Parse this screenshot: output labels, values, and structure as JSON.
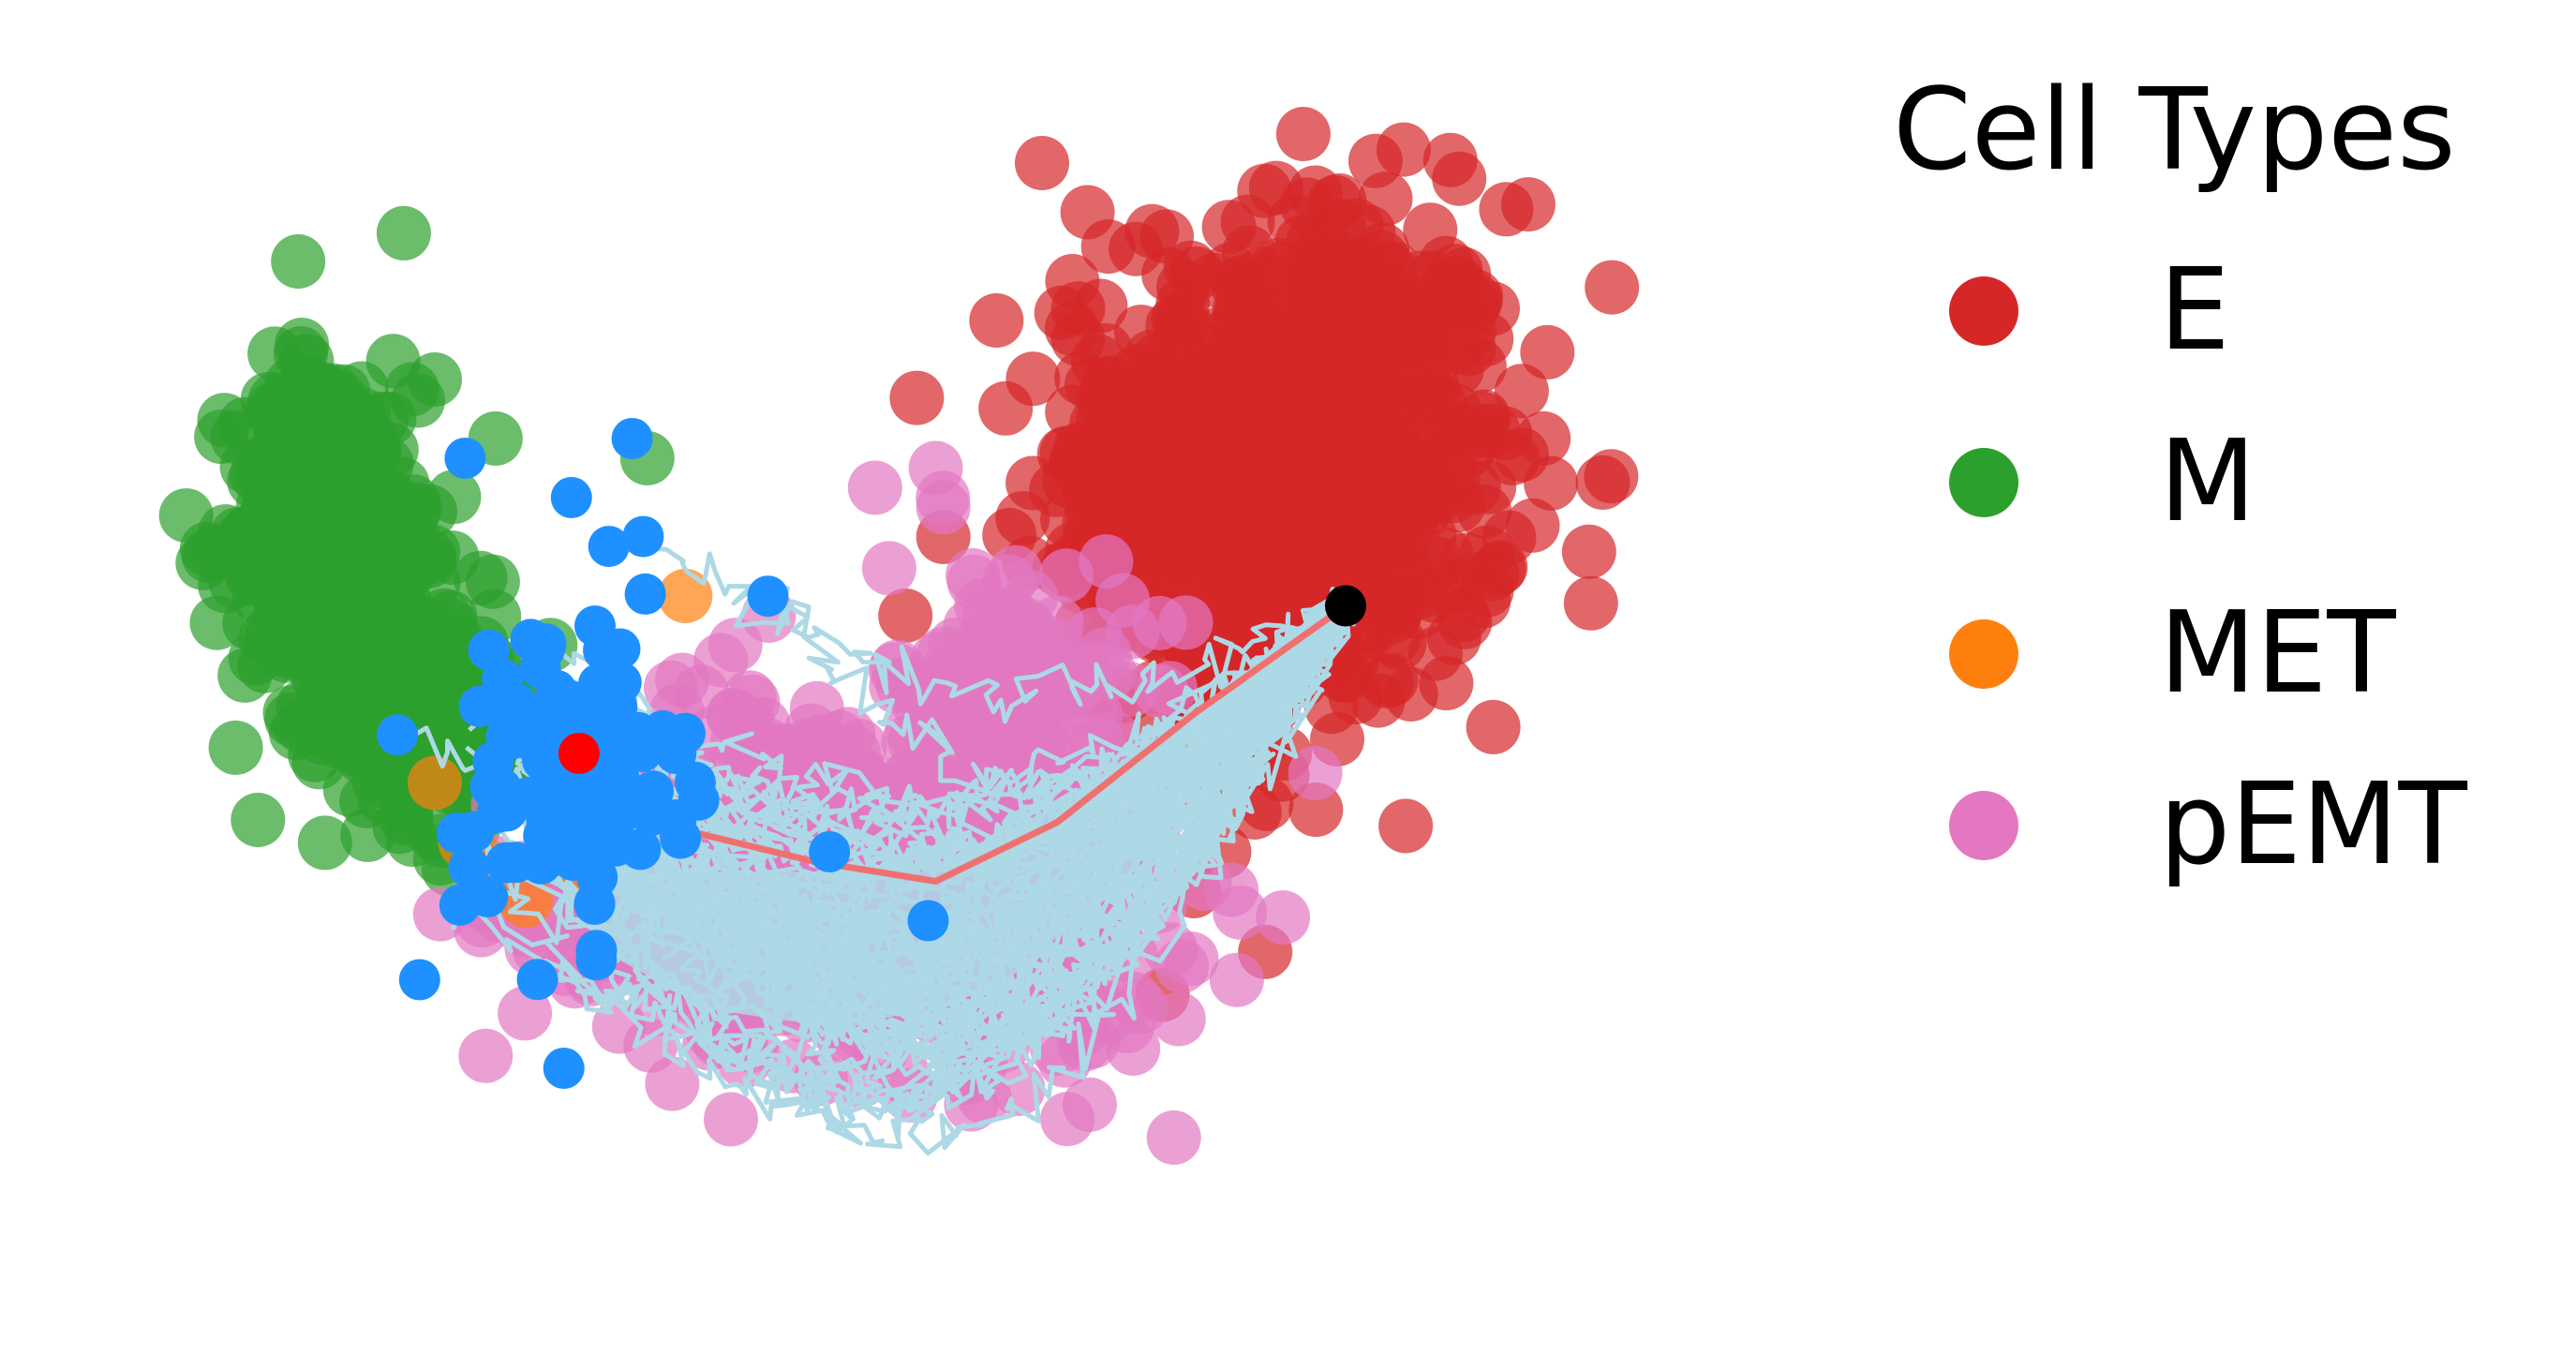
{
  "chart_data": {
    "type": "scatter",
    "title": "",
    "xlabel": "",
    "ylabel": "",
    "axes_visible": false,
    "grid": false,
    "legend": {
      "title": "Cell Types",
      "placement": "right",
      "entries": [
        {
          "name": "E",
          "color": "#d62728"
        },
        {
          "name": "M",
          "color": "#2ca02c"
        },
        {
          "name": "MET",
          "color": "#ff7f0e"
        },
        {
          "name": "pEMT",
          "color": "#e377c2"
        }
      ]
    },
    "xlim": [
      0,
      100
    ],
    "ylim": [
      0,
      60
    ],
    "series": [
      {
        "name": "E",
        "color": "#d62728",
        "alpha": 0.7,
        "clusters": [
          {
            "cx": 78,
            "cy": 41,
            "sx": 6.5,
            "sy": 6.5,
            "n": 650
          },
          {
            "cx": 66,
            "cy": 39,
            "sx": 3.5,
            "sy": 4,
            "n": 160
          },
          {
            "cx": 72,
            "cy": 30,
            "sx": 3,
            "sy": 2.5,
            "n": 70
          }
        ],
        "points": [
          {
            "x": 60,
            "y": 56
          },
          {
            "x": 63,
            "y": 53.5
          },
          {
            "x": 78,
            "y": 54.5
          },
          {
            "x": 81.5,
            "y": 52.5
          },
          {
            "x": 62,
            "y": 50
          },
          {
            "x": 73,
            "y": 48.5
          },
          {
            "x": 57,
            "y": 48
          },
          {
            "x": 85,
            "y": 48.5
          },
          {
            "x": 89,
            "y": 43
          },
          {
            "x": 91,
            "y": 41
          },
          {
            "x": 53.5,
            "y": 37
          },
          {
            "x": 51,
            "y": 33
          },
          {
            "x": 71,
            "y": 24
          },
          {
            "x": 74,
            "y": 23
          },
          {
            "x": 76,
            "y": 26
          },
          {
            "x": 70,
            "y": 19
          },
          {
            "x": 72,
            "y": 21
          },
          {
            "x": 67,
            "y": 25
          }
        ]
      },
      {
        "name": "M",
        "color": "#2ca02c",
        "alpha": 0.7,
        "clusters": [
          {
            "cx": 13,
            "cy": 37,
            "sx": 3,
            "sy": 4.5,
            "n": 360
          },
          {
            "cx": 18,
            "cy": 30,
            "sx": 3,
            "sy": 3.5,
            "n": 160
          },
          {
            "cx": 22,
            "cy": 26,
            "sx": 2.5,
            "sy": 2.5,
            "n": 60
          }
        ],
        "points": [
          {
            "x": 11,
            "y": 51
          },
          {
            "x": 9,
            "y": 44
          },
          {
            "x": 18.5,
            "y": 44.5
          },
          {
            "x": 20,
            "y": 45
          },
          {
            "x": 17,
            "y": 43
          },
          {
            "x": 34,
            "y": 41
          },
          {
            "x": 24,
            "y": 42
          },
          {
            "x": 11,
            "y": 41
          }
        ]
      },
      {
        "name": "pEMT",
        "color": "#e377c2",
        "alpha": 0.7,
        "clusters": [
          {
            "cx": 50,
            "cy": 18,
            "sx": 9,
            "sy": 4,
            "n": 420
          },
          {
            "cx": 58,
            "cy": 28,
            "sx": 4,
            "sy": 4,
            "n": 160
          },
          {
            "cx": 42,
            "cy": 22,
            "sx": 5,
            "sy": 4,
            "n": 140
          },
          {
            "cx": 32,
            "cy": 19,
            "sx": 5,
            "sy": 3,
            "n": 90
          }
        ],
        "points": [
          {
            "x": 49,
            "y": 39.5
          },
          {
            "x": 53,
            "y": 40.5
          },
          {
            "x": 53.5,
            "y": 38.5
          },
          {
            "x": 56,
            "y": 33.5
          },
          {
            "x": 66,
            "y": 11
          },
          {
            "x": 69,
            "y": 12.5
          },
          {
            "x": 51,
            "y": 9.5
          },
          {
            "x": 55,
            "y": 9.5
          },
          {
            "x": 61,
            "y": 11
          },
          {
            "x": 78,
            "y": 25
          },
          {
            "x": 26,
            "y": 17
          },
          {
            "x": 42,
            "y": 33
          }
        ]
      },
      {
        "name": "MET",
        "color": "#ff7f0e",
        "alpha": 0.7,
        "clusters": [],
        "points": [
          {
            "x": 36.5,
            "y": 34
          },
          {
            "x": 20,
            "y": 24.5
          },
          {
            "x": 22,
            "y": 21.5
          },
          {
            "x": 23,
            "y": 20.5
          },
          {
            "x": 26,
            "y": 18.5
          },
          {
            "x": 30,
            "y": 20
          },
          {
            "x": 28,
            "y": 26
          },
          {
            "x": 32.5,
            "y": 22.5
          }
        ]
      }
    ],
    "overlay": {
      "trajectories": {
        "color": "#add8e6",
        "count": 60,
        "start": {
          "x": 80,
          "y": 33.5
        }
      },
      "mean_path": {
        "color": "#f07070",
        "points": [
          {
            "x": 80,
            "y": 33.5
          },
          {
            "x": 70,
            "y": 28
          },
          {
            "x": 61,
            "y": 22.5
          },
          {
            "x": 53,
            "y": 19.5
          },
          {
            "x": 45,
            "y": 20.5
          },
          {
            "x": 37,
            "y": 22
          },
          {
            "x": 30,
            "y": 25
          },
          {
            "x": 26,
            "y": 27
          }
        ]
      },
      "endpoints": {
        "color": "#1e90ff",
        "count": 110,
        "cx": 29,
        "cy": 25,
        "sx": 6.5,
        "sy": 7.5,
        "extra": [
          {
            "x": 52.5,
            "y": 17.5
          },
          {
            "x": 19,
            "y": 14.5
          },
          {
            "x": 46,
            "y": 21
          },
          {
            "x": 33,
            "y": 42
          },
          {
            "x": 29,
            "y": 39
          },
          {
            "x": 22,
            "y": 41
          },
          {
            "x": 28.5,
            "y": 10
          }
        ]
      },
      "start_point": {
        "x": 80,
        "y": 33.5,
        "color": "#000000"
      },
      "mean_endpoint": {
        "x": 29.5,
        "y": 26,
        "color": "#ff0000"
      }
    }
  }
}
